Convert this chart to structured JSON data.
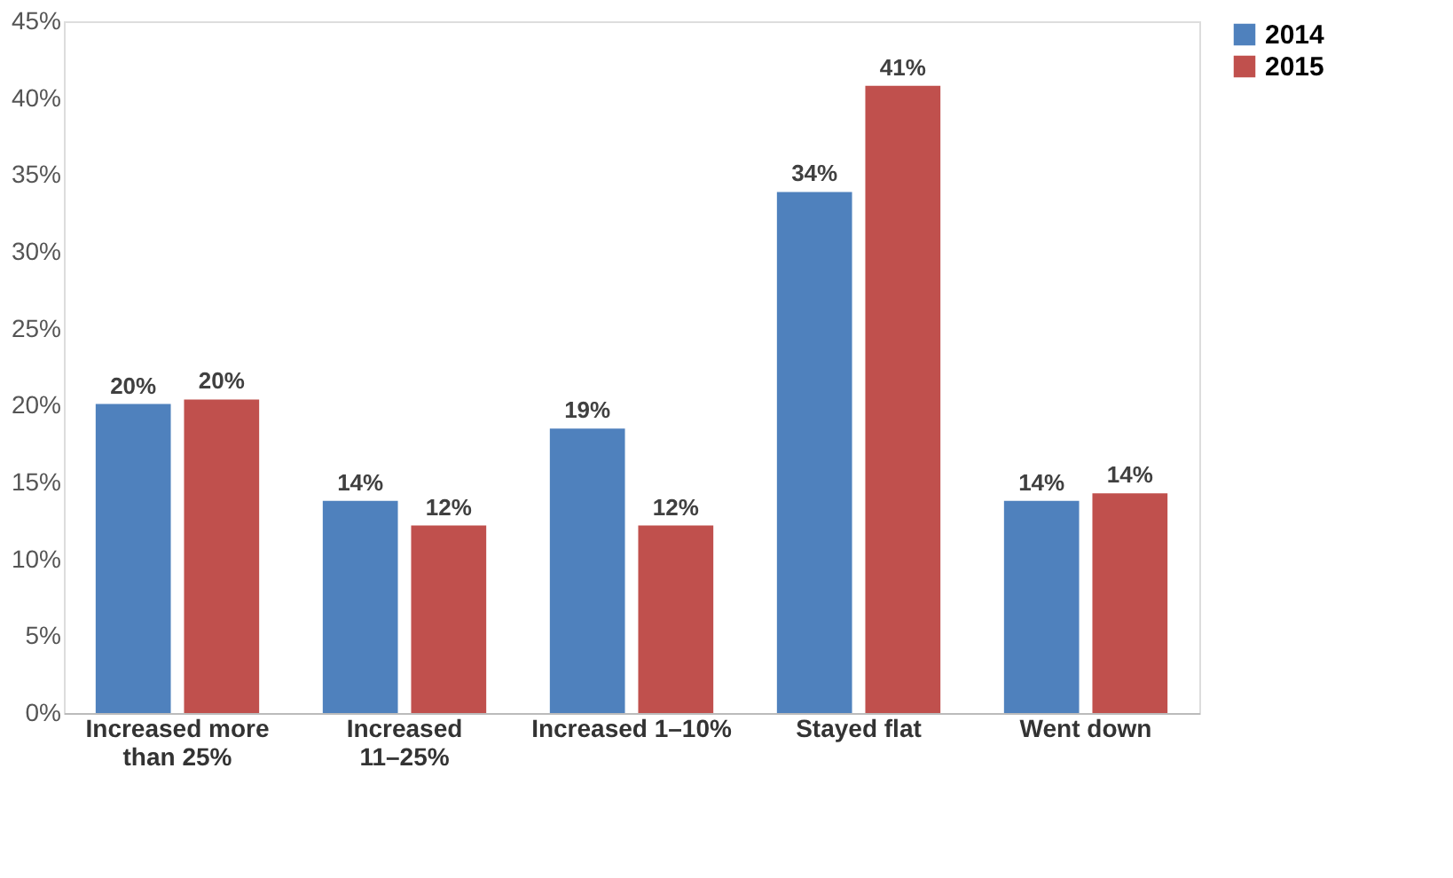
{
  "chart_data": {
    "type": "bar",
    "categories": [
      "Increased more than 25%",
      "Increased 11–25%",
      "Increased 1–10%",
      "Stayed flat",
      "Went down"
    ],
    "series": [
      {
        "name": "2014",
        "color": "#4f81bd",
        "values": [
          20.1,
          13.8,
          18.5,
          33.9,
          13.8
        ],
        "value_labels": [
          "20%",
          "14%",
          "19%",
          "34%",
          "14%"
        ]
      },
      {
        "name": "2015",
        "color": "#c0504d",
        "values": [
          20.4,
          12.2,
          12.2,
          40.8,
          14.3
        ],
        "value_labels": [
          "20%",
          "12%",
          "12%",
          "41%",
          "14%"
        ]
      }
    ],
    "ylim": [
      0,
      45
    ],
    "yticks": [
      {
        "value": 0,
        "label": "0%"
      },
      {
        "value": 5,
        "label": "5%"
      },
      {
        "value": 10,
        "label": "10%"
      },
      {
        "value": 15,
        "label": "15%"
      },
      {
        "value": 20,
        "label": "20%"
      },
      {
        "value": 25,
        "label": "25%"
      },
      {
        "value": 30,
        "label": "30%"
      },
      {
        "value": 35,
        "label": "35%"
      },
      {
        "value": 40,
        "label": "40%"
      },
      {
        "value": 45,
        "label": "45%"
      }
    ],
    "grid": false,
    "legend": "right"
  }
}
